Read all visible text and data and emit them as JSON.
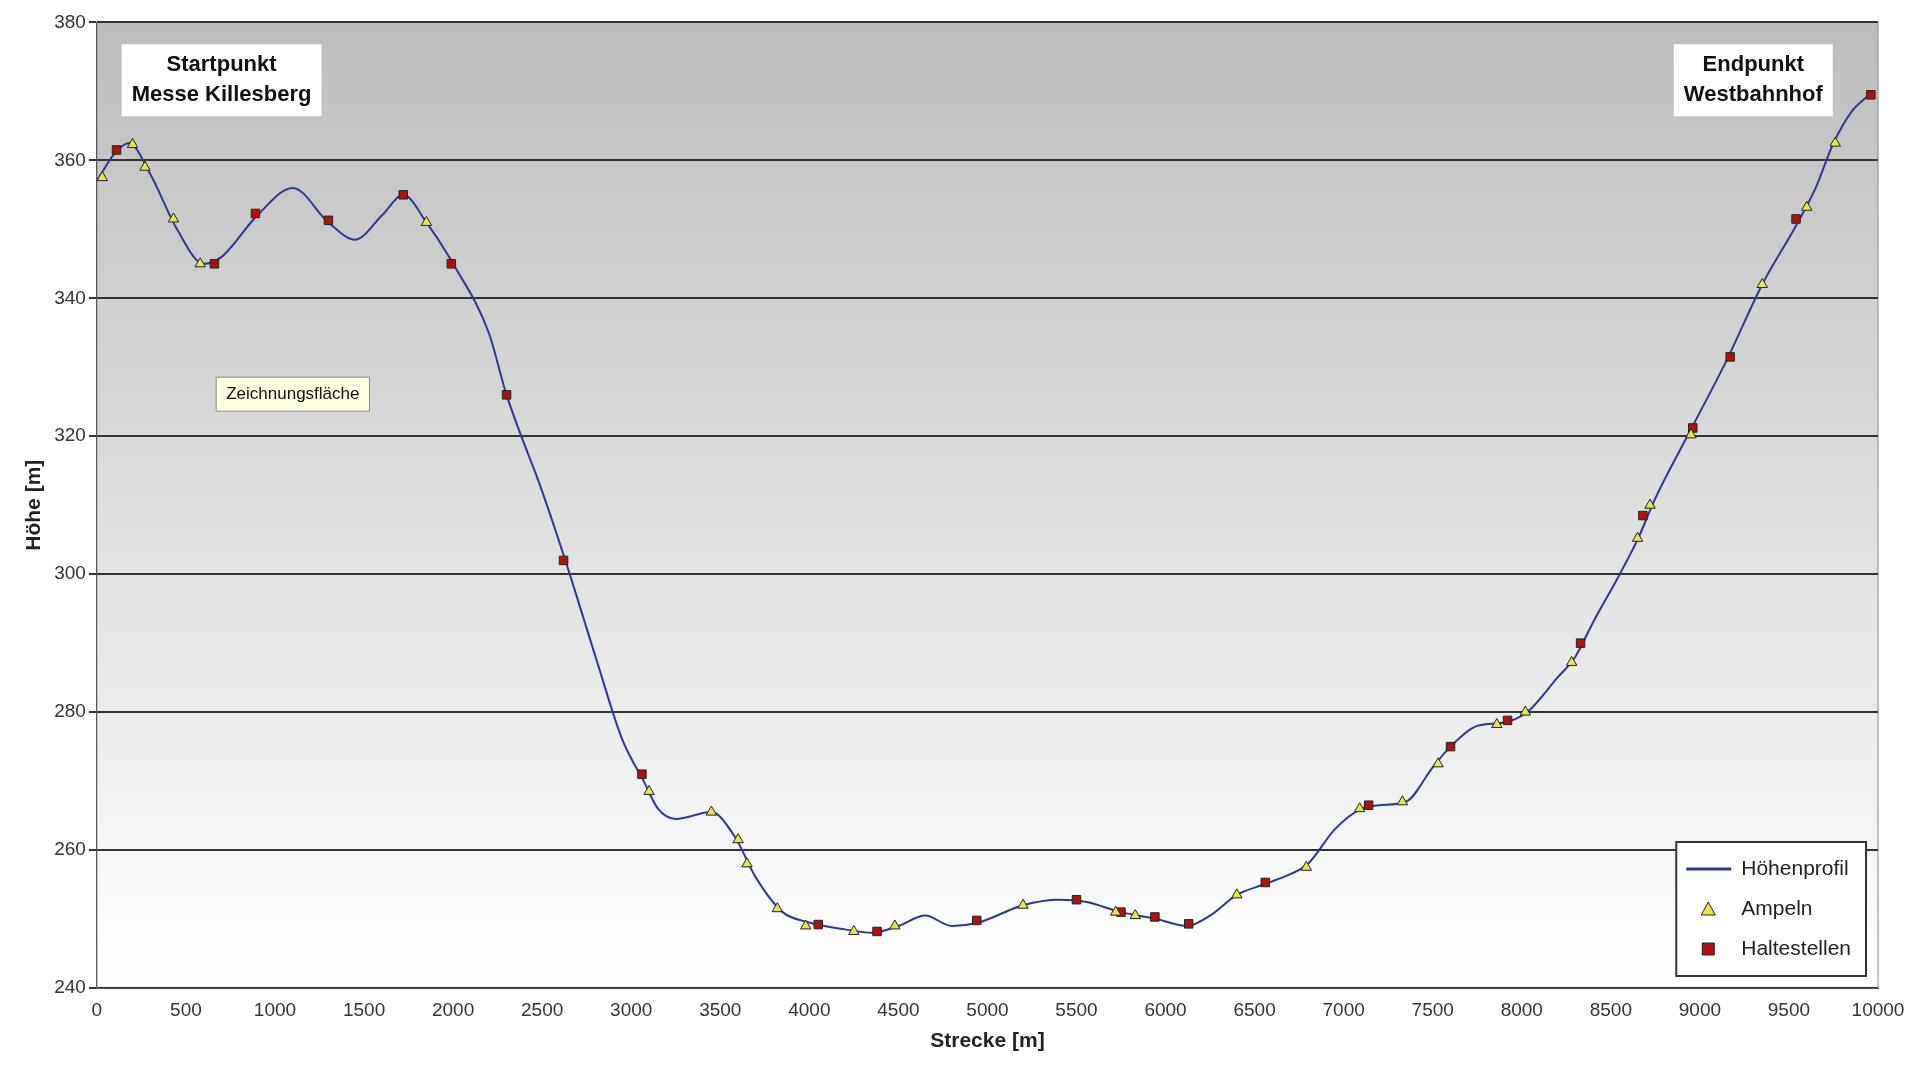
{
  "chart_data": {
    "type": "line",
    "xlabel": "Strecke [m]",
    "ylabel": "Höhe [m]",
    "xlim": [
      0,
      10000
    ],
    "xticks": [
      0,
      500,
      1000,
      1500,
      2000,
      2500,
      3000,
      3500,
      4000,
      4500,
      5000,
      5500,
      6000,
      6500,
      7000,
      7500,
      8000,
      8500,
      9000,
      9500,
      10000
    ],
    "ylim": [
      240,
      380
    ],
    "yticks": [
      240,
      260,
      280,
      300,
      320,
      340,
      360,
      380
    ],
    "grid": "y",
    "legend": "bottom right",
    "series": [
      {
        "name": "Höhenprofil",
        "color": "#2b3a8c",
        "marker": "none",
        "x": [
          0,
          100,
          180,
          300,
          450,
          600,
          700,
          900,
          1100,
          1300,
          1450,
          1600,
          1720,
          1850,
          2000,
          2200,
          2300,
          2500,
          2630,
          2800,
          2950,
          3070,
          3150,
          3250,
          3450,
          3580,
          3700,
          3850,
          4000,
          4200,
          4350,
          4500,
          4650,
          4800,
          4950,
          5200,
          5400,
          5550,
          5750,
          5950,
          6120,
          6250,
          6400,
          6550,
          6700,
          6800,
          6950,
          7100,
          7200,
          7350,
          7500,
          7600,
          7750,
          7900,
          8030,
          8200,
          8300,
          8400,
          8550,
          8650,
          8750,
          8950,
          9150,
          9350,
          9550,
          9650,
          9750,
          9850,
          9950
        ],
        "values": [
          357,
          361,
          362.5,
          358,
          350,
          345,
          346,
          352,
          356,
          351,
          348.5,
          352,
          355,
          351,
          345,
          335,
          326,
          312,
          302,
          288,
          276,
          270,
          266,
          264.5,
          265.5,
          262,
          256,
          251,
          249.5,
          248.5,
          248,
          249,
          250.5,
          249,
          249.5,
          252,
          252.8,
          252.5,
          251,
          250,
          249,
          250.5,
          253.5,
          255,
          256.5,
          258,
          263,
          266,
          266.5,
          267,
          272,
          275,
          278,
          278.5,
          280,
          285,
          288,
          293,
          300,
          305,
          311,
          321,
          331,
          342,
          351,
          356,
          362.5,
          367,
          369.5
        ]
      },
      {
        "name": "Ampeln",
        "type": "scatter",
        "color": "#e6e64c",
        "marker": "triangle",
        "x": [
          30,
          200,
          270,
          430,
          580,
          1850,
          3100,
          3450,
          3600,
          3650,
          3820,
          3980,
          4250,
          4480,
          5200,
          5720,
          5830,
          6400,
          6790,
          7090,
          7330,
          7530,
          7860,
          8020,
          8280,
          8650,
          8720,
          8950,
          9350,
          9600,
          9760
        ],
        "values": [
          357.5,
          362.3,
          359,
          351.5,
          345,
          351,
          268.5,
          265.5,
          261.5,
          258,
          251.5,
          249,
          248.2,
          249,
          252,
          251,
          250.5,
          253.5,
          257.5,
          266,
          267,
          272.5,
          278.2,
          280,
          287.2,
          305.2,
          310,
          320.2,
          342,
          353.2,
          362.5
        ]
      },
      {
        "name": "Haltestellen",
        "type": "scatter",
        "color": "#b01010",
        "marker": "square",
        "x": [
          110,
          660,
          890,
          1300,
          1720,
          1990,
          2300,
          2620,
          3060,
          4050,
          4380,
          4940,
          5500,
          5750,
          5940,
          6130,
          6560,
          7140,
          7600,
          7920,
          8330,
          8680,
          8960,
          9170,
          9540,
          9960
        ],
        "values": [
          361.5,
          345,
          352.3,
          351.3,
          355,
          345,
          326,
          302,
          271,
          249.2,
          248.2,
          249.8,
          252.8,
          251,
          250.3,
          249.3,
          255.3,
          266.5,
          275,
          278.8,
          290,
          308.5,
          321.2,
          331.5,
          351.5,
          369.5
        ]
      }
    ],
    "annotations": [
      "Startpunkt\nMesse Killesberg",
      "Endpunkt\nWestbahnhof",
      "Zeichnungsfläche"
    ]
  }
}
